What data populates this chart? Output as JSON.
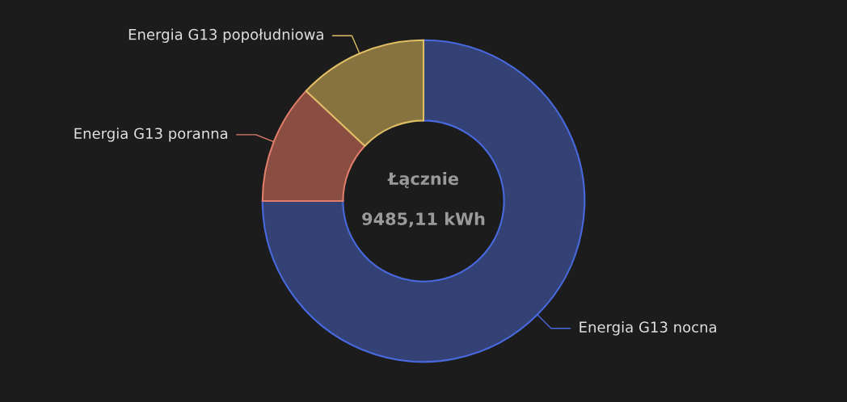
{
  "chart_data": {
    "type": "donut",
    "categories": [
      "Energia G13 nocna",
      "Energia G13 poranna",
      "Energia G13 popołudniowa"
    ],
    "values": [
      75,
      12,
      13
    ],
    "colors": [
      "#334174",
      "#8a4d42",
      "#87733f"
    ],
    "annotations": [
      "Łącznie",
      "9485,11 kWh"
    ]
  }
}
